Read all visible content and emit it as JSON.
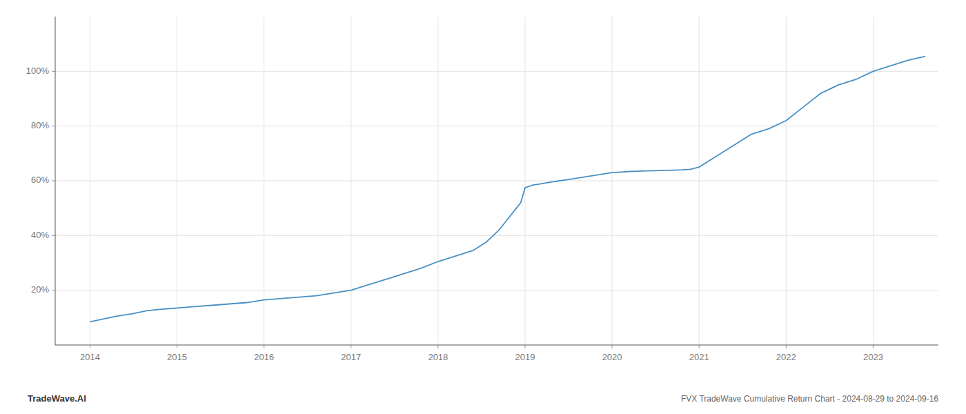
{
  "chart_data": {
    "type": "line",
    "title": "FVX TradeWave Cumulative Return Chart - 2024-08-29 to 2024-09-16",
    "annotations": [
      "TradeWave.AI"
    ],
    "color": "#4a90c4",
    "grid": true,
    "x": [
      2014.0,
      2014.15,
      2014.3,
      2014.5,
      2014.65,
      2014.8,
      2015.0,
      2015.2,
      2015.4,
      2015.6,
      2015.8,
      2016.0,
      2016.2,
      2016.4,
      2016.6,
      2016.8,
      2017.0,
      2017.2,
      2017.4,
      2017.6,
      2017.8,
      2018.0,
      2018.05,
      2018.1,
      2018.15,
      2018.2,
      2018.25,
      2018.3,
      2018.35,
      2018.4,
      2018.45,
      2018.5,
      2018.55,
      2018.6,
      2018.65,
      2018.7,
      2018.75,
      2018.8,
      2018.85,
      2018.9,
      2018.95,
      2019.0,
      2019.05,
      2019.1,
      2019.15,
      2019.2,
      2019.3,
      2019.4,
      2019.5,
      2019.6,
      2019.7,
      2019.8,
      2019.9,
      2020.0,
      2020.1,
      2020.2,
      2020.3,
      2020.4,
      2020.5,
      2020.6,
      2020.7,
      2020.8,
      2020.9,
      2021.0,
      2021.2,
      2021.4,
      2021.6,
      2021.8,
      2022.0,
      2022.2,
      2022.4,
      2022.6,
      2022.8,
      2023.0,
      2023.2,
      2023.4,
      2023.6
    ],
    "values": [
      8.5,
      9.5,
      10.5,
      11.5,
      12.5,
      13.0,
      13.5,
      14.0,
      14.5,
      15.0,
      15.5,
      16.5,
      17.0,
      17.5,
      18.0,
      19.0,
      20.0,
      22.0,
      24.0,
      26.0,
      28.0,
      30.5,
      31.0,
      31.5,
      32.0,
      32.5,
      33.0,
      33.5,
      34.0,
      34.5,
      35.5,
      36.5,
      37.5,
      39.0,
      40.5,
      42.0,
      44.0,
      46.0,
      48.0,
      50.0,
      52.0,
      57.5,
      58.0,
      58.5,
      58.7,
      59.0,
      59.5,
      60.0,
      60.5,
      61.0,
      61.5,
      62.0,
      62.5,
      63.0,
      63.2,
      63.4,
      63.5,
      63.6,
      63.7,
      63.8,
      63.9,
      64.0,
      64.2,
      65.0,
      69.0,
      73.0,
      77.0,
      79.0,
      82.0,
      87.0,
      92.0,
      95.0,
      97.0,
      100.0,
      102.0,
      104.0,
      105.5
    ],
    "xlim": [
      2013.6,
      2023.75
    ],
    "xticks": [
      2014,
      2015,
      2016,
      2017,
      2018,
      2019,
      2020,
      2021,
      2022,
      2023
    ],
    "ylim": [
      0,
      120
    ],
    "yticks": [
      {
        "value": 20,
        "label": "20%"
      },
      {
        "value": 40,
        "label": "40%"
      },
      {
        "value": 60,
        "label": "60%"
      },
      {
        "value": 80,
        "label": "80%"
      },
      {
        "value": 100,
        "label": "100%"
      }
    ]
  }
}
